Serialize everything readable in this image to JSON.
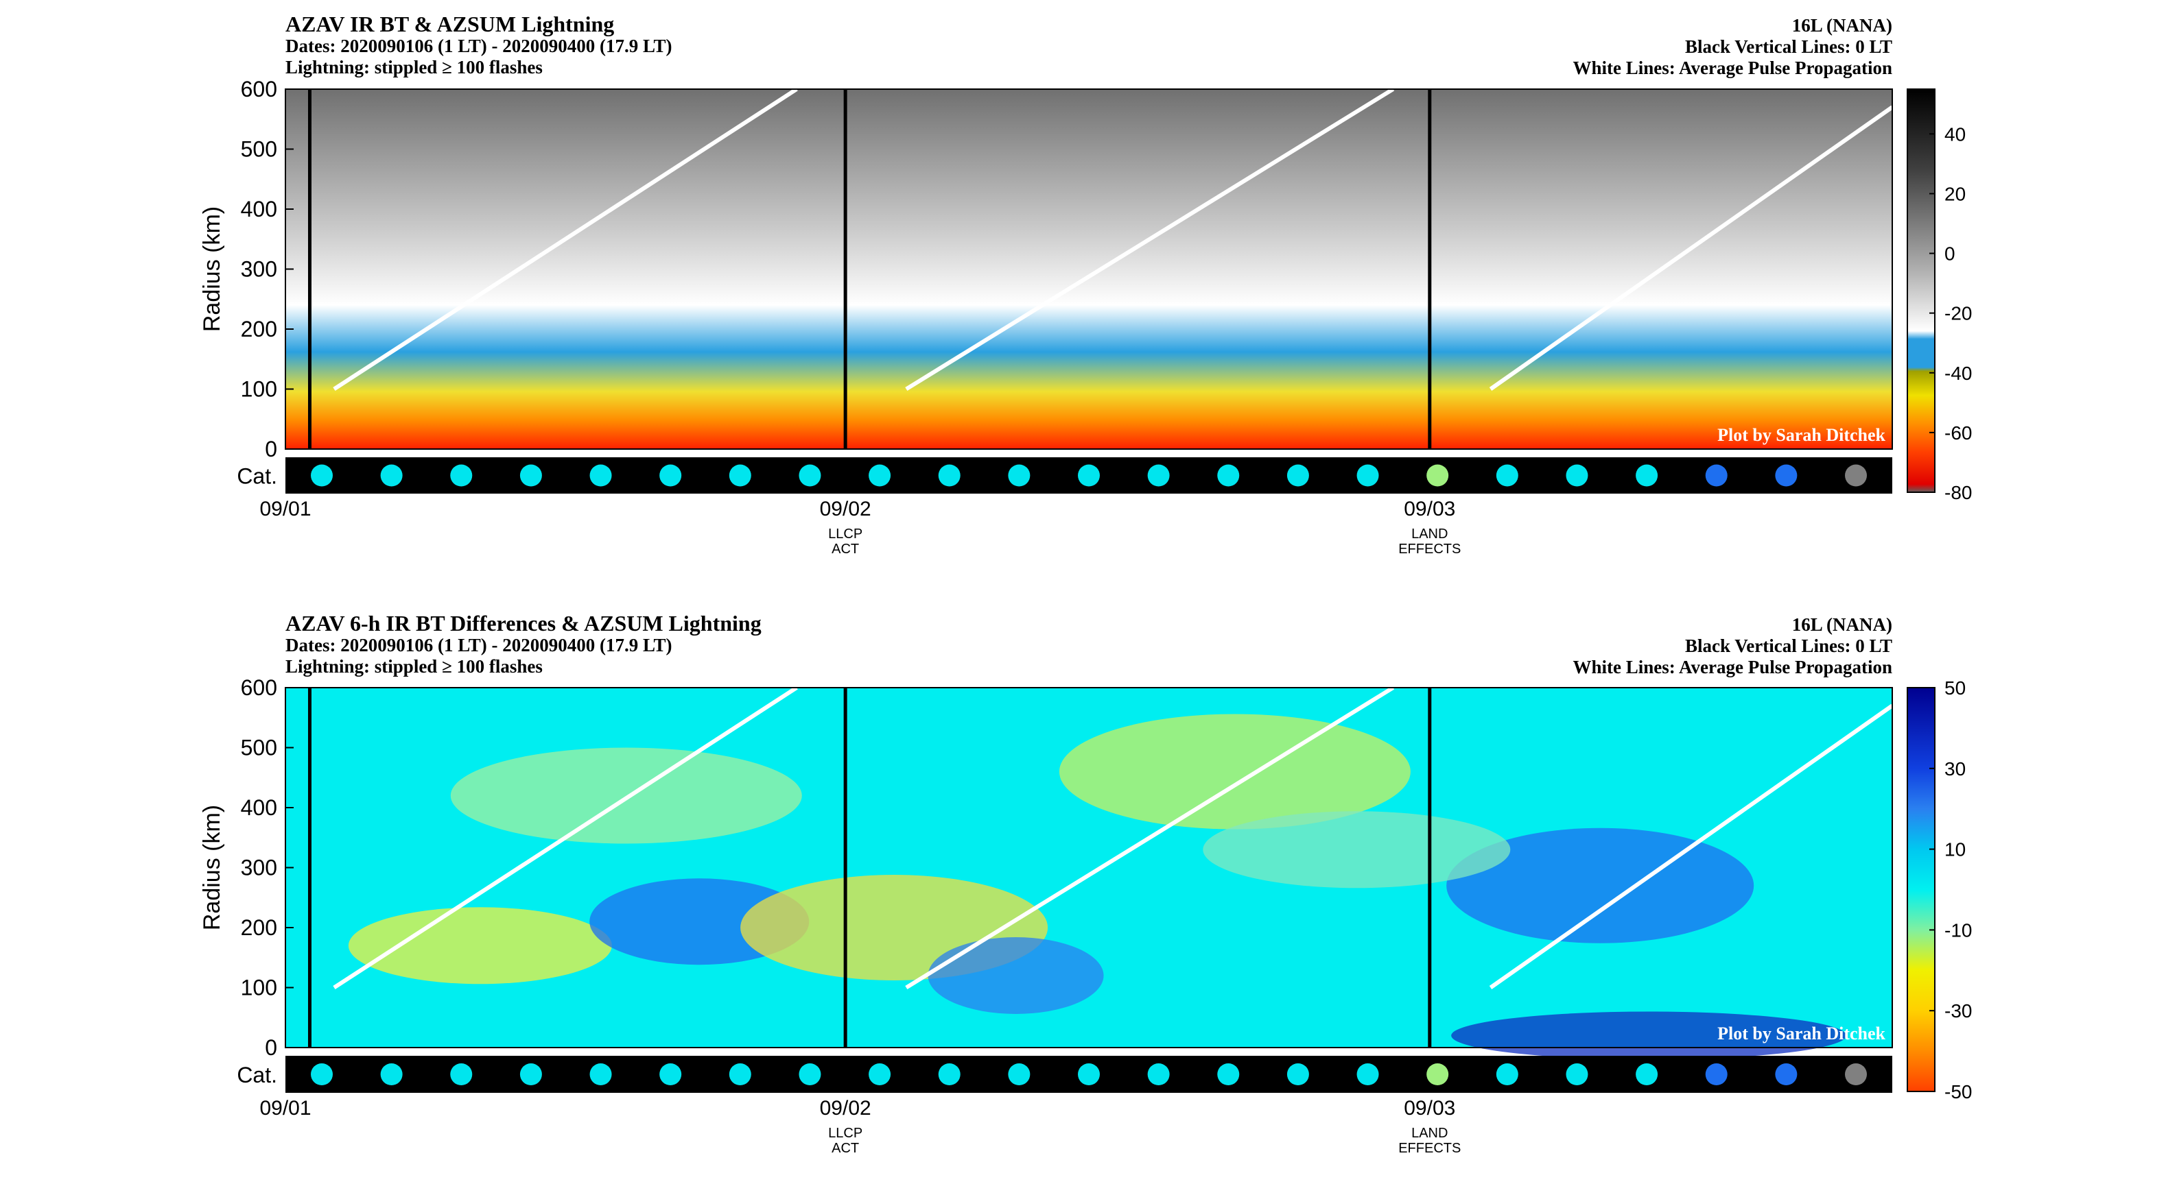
{
  "chart_data": [
    {
      "type": "heatmap",
      "title": "AZAV IR BT & AZSUM Lightning",
      "subtitle_lines": [
        "Dates: 2020090106 (1 LT) - 2020090400 (17.9 LT)",
        "Lightning: stippled ≥ 100 flashes"
      ],
      "right_lines": [
        "16L (NANA)",
        "Black Vertical Lines: 0 LT",
        "White Lines: Average Pulse Propagation"
      ],
      "ylabel": "Radius (km)",
      "ylim": [
        0,
        600
      ],
      "yticks": [
        "600",
        "500",
        "400",
        "300",
        "200",
        "100",
        "0"
      ],
      "x_range_hours": [
        0,
        66
      ],
      "xticks": [
        {
          "hour": 0,
          "label": "09/01",
          "note": []
        },
        {
          "hour": 23,
          "label": "09/02",
          "note": [
            "LLCP",
            "ACT"
          ]
        },
        {
          "hour": 47,
          "label": "09/03",
          "note": [
            "LAND",
            "EFFECTS"
          ]
        }
      ],
      "colorbar": {
        "ticks": [
          "40",
          "20",
          "0",
          "-20",
          "-40",
          "-60",
          "-80"
        ],
        "range": [
          -80,
          55
        ],
        "style": "ir"
      },
      "category_label": "Cat.",
      "category_colors": [
        "#00e5ee",
        "#00e5ee",
        "#00e5ee",
        "#00e5ee",
        "#00e5ee",
        "#00e5ee",
        "#00e5ee",
        "#00e5ee",
        "#00e5ee",
        "#00e5ee",
        "#00e5ee",
        "#00e5ee",
        "#00e5ee",
        "#00e5ee",
        "#00e5ee",
        "#00e5ee",
        "#a0f080",
        "#00e5ee",
        "#00e5ee",
        "#00e5ee",
        "#1e6ff0",
        "#1e6ff0",
        "#808080"
      ],
      "vertical_lines_hours": [
        1,
        23,
        47
      ],
      "white_lines_km": [
        {
          "from": [
            2,
            100
          ],
          "to": [
            21,
            600
          ]
        },
        {
          "from": [
            25.5,
            100
          ],
          "to": [
            45.5,
            600
          ]
        },
        {
          "from": [
            49.5,
            100
          ],
          "to": [
            66,
            570
          ]
        }
      ],
      "credit": "Plot by Sarah Ditchek"
    },
    {
      "type": "heatmap",
      "title": "AZAV 6-h IR BT Differences & AZSUM Lightning",
      "subtitle_lines": [
        "Dates: 2020090106 (1 LT) - 2020090400 (17.9 LT)",
        "Lightning: stippled ≥ 100 flashes"
      ],
      "right_lines": [
        "16L (NANA)",
        "Black Vertical Lines: 0 LT",
        "White Lines: Average Pulse Propagation"
      ],
      "ylabel": "Radius (km)",
      "ylim": [
        0,
        600
      ],
      "yticks": [
        "600",
        "500",
        "400",
        "300",
        "200",
        "100",
        "0"
      ],
      "x_range_hours": [
        0,
        66
      ],
      "xticks": [
        {
          "hour": 0,
          "label": "09/01",
          "note": []
        },
        {
          "hour": 23,
          "label": "09/02",
          "note": [
            "LLCP",
            "ACT"
          ]
        },
        {
          "hour": 47,
          "label": "09/03",
          "note": [
            "LAND",
            "EFFECTS"
          ]
        }
      ],
      "colorbar": {
        "ticks": [
          "50",
          "30",
          "10",
          "-10",
          "-30",
          "-50"
        ],
        "range": [
          -50,
          50
        ],
        "style": "diff"
      },
      "category_label": "Cat.",
      "category_colors": [
        "#00e5ee",
        "#00e5ee",
        "#00e5ee",
        "#00e5ee",
        "#00e5ee",
        "#00e5ee",
        "#00e5ee",
        "#00e5ee",
        "#00e5ee",
        "#00e5ee",
        "#00e5ee",
        "#00e5ee",
        "#00e5ee",
        "#00e5ee",
        "#00e5ee",
        "#00e5ee",
        "#a0f080",
        "#00e5ee",
        "#00e5ee",
        "#00e5ee",
        "#1e6ff0",
        "#1e6ff0",
        "#808080"
      ],
      "vertical_lines_hours": [
        1,
        23,
        47
      ],
      "white_lines_km": [
        {
          "from": [
            2,
            100
          ],
          "to": [
            21,
            600
          ]
        },
        {
          "from": [
            25.5,
            100
          ],
          "to": [
            45.5,
            600
          ]
        },
        {
          "from": [
            49.5,
            100
          ],
          "to": [
            66,
            570
          ]
        }
      ],
      "credit": "Plot by Sarah Ditchek"
    }
  ]
}
